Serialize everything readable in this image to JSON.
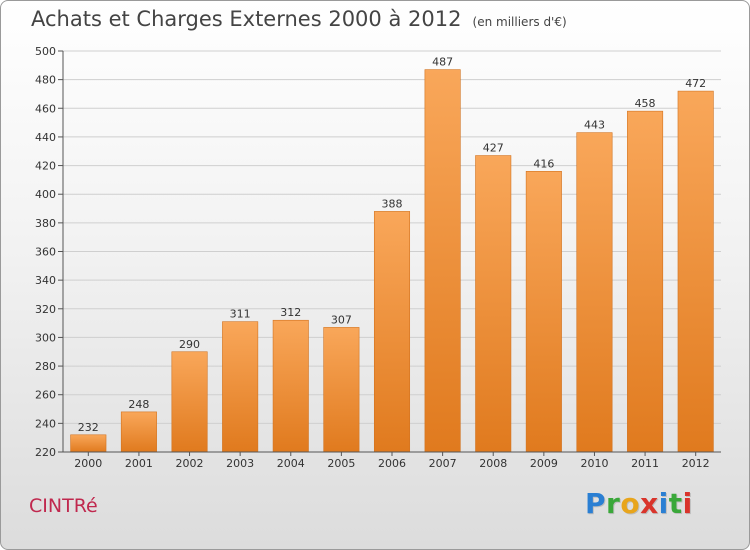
{
  "title": "Achats et Charges Externes 2000 à 2012",
  "subtitle": "(en milliers d'€)",
  "commune": "CINTRé",
  "logo": {
    "letters": [
      "P",
      "r",
      "o",
      "x",
      "i",
      "t",
      "i"
    ],
    "colors": [
      "#2a7fd3",
      "#3aa83a",
      "#e8a51c",
      "#d9342b",
      "#2a7fd3",
      "#3aa83a",
      "#d9342b"
    ]
  },
  "colors": {
    "bar_top": "#f9a75a",
    "bar_bottom": "#e07a1e",
    "bar_edge": "#d27320",
    "grid": "#cfcfcf"
  },
  "chart_data": {
    "type": "bar",
    "categories": [
      "2000",
      "2001",
      "2002",
      "2003",
      "2004",
      "2005",
      "2006",
      "2007",
      "2008",
      "2009",
      "2010",
      "2011",
      "2012"
    ],
    "values": [
      232,
      248,
      290,
      311,
      312,
      307,
      388,
      487,
      427,
      416,
      443,
      458,
      472
    ],
    "ylim": [
      220,
      500
    ],
    "yticks": [
      220,
      240,
      260,
      280,
      300,
      320,
      340,
      360,
      380,
      400,
      420,
      440,
      460,
      480,
      500
    ],
    "grid": true,
    "legend": "none"
  }
}
